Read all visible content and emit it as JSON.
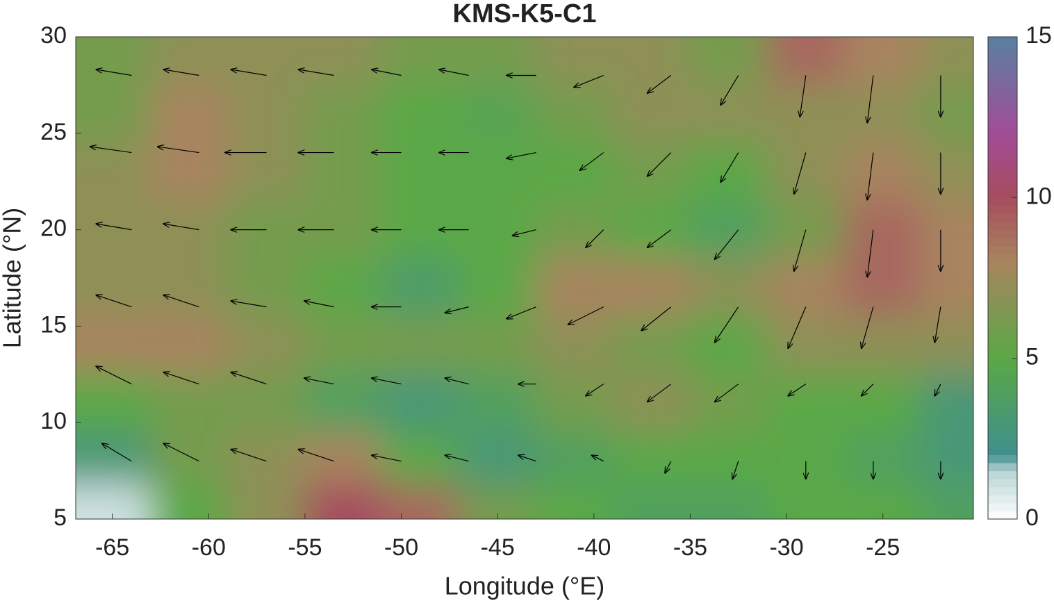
{
  "chart_data": {
    "type": "heatmap",
    "title": "KMS-K5-C1",
    "x_label": "Longitude (°E)",
    "y_label": "Latitude (°N)",
    "xlim": [
      -66.9,
      -20.3
    ],
    "ylim": [
      5,
      30
    ],
    "xticks": [
      -65,
      -60,
      -55,
      -50,
      -45,
      -40,
      -35,
      -30,
      -25
    ],
    "yticks": [
      5,
      10,
      15,
      20,
      25,
      30
    ],
    "clim": [
      0,
      15
    ],
    "cticks": [
      0,
      5,
      10,
      15
    ],
    "colormap": [
      {
        "value": 0,
        "color": "#ffffff"
      },
      {
        "value": 1.5,
        "color": "#b9d3d3"
      },
      {
        "value": 2,
        "color": "#3f8f8f"
      },
      {
        "value": 5,
        "color": "#5aa846"
      },
      {
        "value": 8,
        "color": "#a8845e"
      },
      {
        "value": 10,
        "color": "#a64c5e"
      },
      {
        "value": 12,
        "color": "#a24c98"
      },
      {
        "value": 15,
        "color": "#5a80a0"
      }
    ],
    "lons": [
      -65,
      -61,
      -57,
      -53,
      -49,
      -45,
      -41,
      -37,
      -33,
      -29,
      -25,
      -21
    ],
    "lats": [
      29,
      26,
      23,
      20,
      17,
      14,
      11,
      8,
      5.5
    ],
    "speed": [
      [
        6,
        7,
        7,
        7,
        6,
        6,
        7,
        7,
        6,
        9,
        8,
        7
      ],
      [
        6,
        8,
        7,
        6,
        5,
        4.5,
        6,
        7,
        7,
        7,
        7,
        6
      ],
      [
        7,
        8,
        7,
        6,
        5,
        5,
        5,
        6,
        5,
        7,
        8,
        7
      ],
      [
        7,
        7,
        6,
        6,
        5,
        5,
        6,
        5,
        4,
        6,
        9,
        8
      ],
      [
        7,
        7,
        6,
        5,
        3.5,
        5,
        8,
        8,
        7,
        8,
        9,
        8
      ],
      [
        8,
        8,
        7,
        6,
        6,
        6,
        7,
        6,
        5,
        7,
        7,
        7
      ],
      [
        5,
        6,
        6,
        4,
        3,
        4,
        6,
        7,
        6,
        5,
        5,
        3
      ],
      [
        3,
        6,
        7,
        8,
        5,
        3,
        4,
        5,
        5,
        5,
        4,
        3
      ],
      [
        1,
        5,
        7,
        10,
        9,
        6,
        5,
        4,
        4,
        5,
        5,
        4
      ]
    ],
    "wind_lons": [
      -64,
      -60.5,
      -57,
      -53.5,
      -50,
      -46.5,
      -43,
      -39.5,
      -36,
      -32.5,
      -29,
      -25.5,
      -22
    ],
    "wind_lats": [
      28,
      24,
      20,
      16,
      12,
      8
    ],
    "u": [
      [
        -6,
        -6,
        -6,
        -6,
        -5,
        -5,
        -5,
        -5,
        -4,
        -3,
        -1,
        -1,
        0
      ],
      [
        -7,
        -7,
        -7,
        -6,
        -5,
        -5,
        -5,
        -4,
        -4,
        -3,
        -2,
        -1,
        0
      ],
      [
        -6,
        -6,
        -6,
        -6,
        -5,
        -5,
        -4,
        -3,
        -4,
        -4,
        -2,
        -1,
        0
      ],
      [
        -6,
        -6,
        -6,
        -5,
        -5,
        -4,
        -5,
        -6,
        -5,
        -4,
        -3,
        -2,
        -1
      ],
      [
        -6,
        -6,
        -6,
        -5,
        -5,
        -4,
        -3,
        -3,
        -4,
        -4,
        -3,
        -2,
        -1
      ],
      [
        -5,
        -6,
        -6,
        -6,
        -5,
        -4,
        -3,
        -2,
        -1,
        -1,
        0,
        0,
        0
      ]
    ],
    "v": [
      [
        1,
        1,
        1,
        1,
        1,
        1,
        0,
        -2,
        -3,
        -5,
        -7,
        -8,
        -7
      ],
      [
        1,
        1,
        0,
        0,
        0,
        0,
        -1,
        -3,
        -4,
        -5,
        -7,
        -8,
        -7
      ],
      [
        1,
        1,
        0,
        0,
        0,
        0,
        -1,
        -3,
        -3,
        -5,
        -7,
        -8,
        -7
      ],
      [
        2,
        2,
        1,
        1,
        0,
        -1,
        -2,
        -3,
        -4,
        -6,
        -7,
        -7,
        -6
      ],
      [
        3,
        2,
        2,
        1,
        1,
        1,
        0,
        -2,
        -3,
        -3,
        -2,
        -2,
        -2
      ],
      [
        3,
        3,
        2,
        2,
        1,
        1,
        1,
        1,
        -2,
        -3,
        -3,
        -3,
        -3
      ]
    ]
  }
}
